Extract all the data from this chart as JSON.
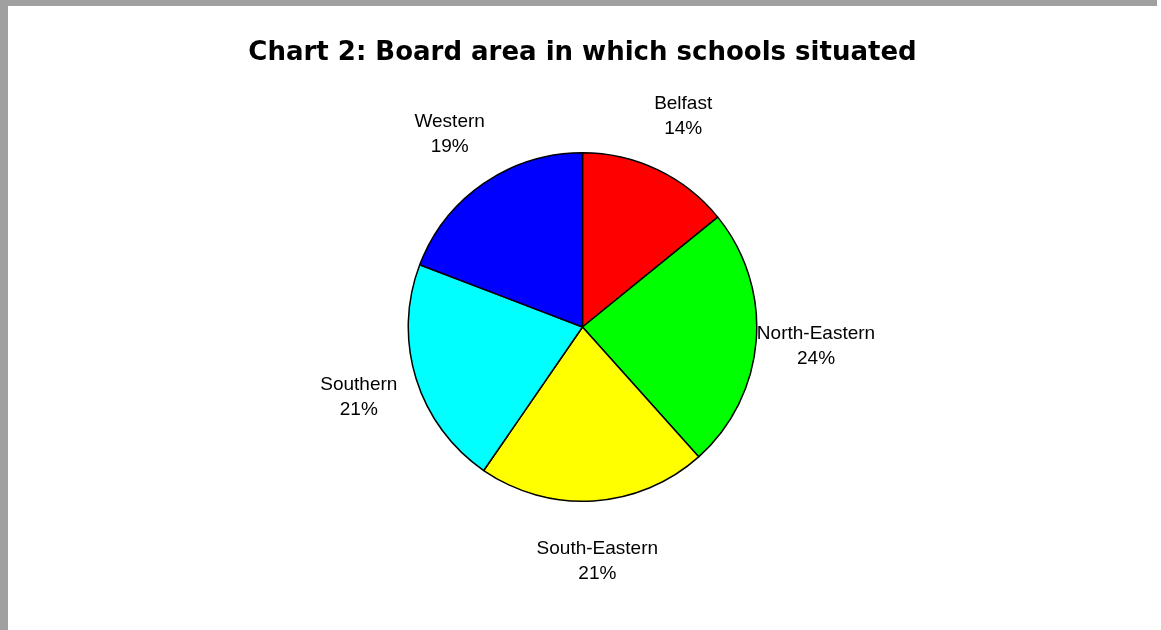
{
  "chart_data": {
    "type": "pie",
    "title": "Chart 2: Board area in which schools situated",
    "categories": [
      "Belfast",
      "North-Eastern",
      "South-Eastern",
      "Southern",
      "Western"
    ],
    "values": [
      14,
      24,
      21,
      21,
      19
    ],
    "value_labels": [
      "14%",
      "24%",
      "21%",
      "21%",
      "19%"
    ],
    "colors": [
      "#ff0000",
      "#00ff00",
      "#ffff00",
      "#00ffff",
      "#0000ff"
    ],
    "legend": false
  }
}
